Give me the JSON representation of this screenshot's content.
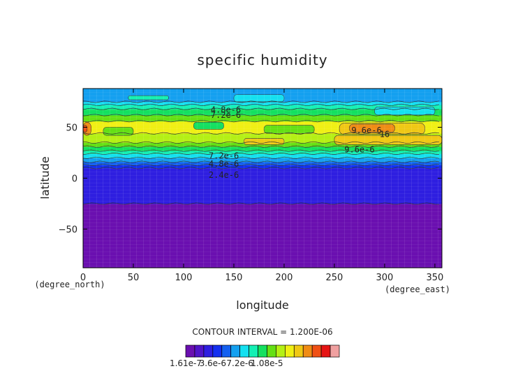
{
  "chart_data": {
    "type": "heatmap",
    "title": "specific humidity",
    "xlabel": "longitude",
    "ylabel": "latitude",
    "x_unit_label": "(degree_east)",
    "y_unit_label": "(degree_north)",
    "xlim": [
      0,
      357
    ],
    "ylim": [
      -88,
      88
    ],
    "x_ticks": [
      0,
      50,
      100,
      150,
      200,
      250,
      300,
      350
    ],
    "y_ticks": [
      -50,
      0,
      50
    ],
    "contour_interval_text": "CONTOUR INTERVAL = 1.200E-06",
    "color_levels": [
      "#6a0fb0",
      "#5014c8",
      "#2e1ee0",
      "#1430f0",
      "#1460f0",
      "#14a0f0",
      "#14e0f0",
      "#14f0b4",
      "#14e060",
      "#64e014",
      "#b4f014",
      "#f0f014",
      "#f0c814",
      "#f08c14",
      "#f05014",
      "#e61414",
      "#f0a0a0"
    ],
    "colorbar_labels": [
      "1.61e-7",
      "3.6e-6",
      "7.2e-6",
      "1.08e-5"
    ],
    "lat_profile": [
      {
        "lat": -88,
        "level": 0
      },
      {
        "lat": -26,
        "level": 0
      },
      {
        "lat": -25,
        "level": 2
      },
      {
        "lat": 9,
        "level": 2
      },
      {
        "lat": 10,
        "level": 3
      },
      {
        "lat": 13,
        "level": 4
      },
      {
        "lat": 16,
        "level": 5
      },
      {
        "lat": 20,
        "level": 6
      },
      {
        "lat": 24,
        "level": 7
      },
      {
        "lat": 27,
        "level": 8
      },
      {
        "lat": 31,
        "level": 9
      },
      {
        "lat": 35,
        "level": 10
      },
      {
        "lat": 44,
        "level": 11
      },
      {
        "lat": 56,
        "level": 9
      },
      {
        "lat": 62,
        "level": 8
      },
      {
        "lat": 68,
        "level": 7
      },
      {
        "lat": 72,
        "level": 6
      },
      {
        "lat": 75,
        "level": 5
      },
      {
        "lat": 88,
        "level": 5
      }
    ],
    "patches": [
      {
        "lon": [
          250,
          357
        ],
        "lat": [
          33,
          42
        ],
        "level": 12
      },
      {
        "lon": [
          160,
          200
        ],
        "lat": [
          33,
          39
        ],
        "level": 12
      },
      {
        "lon": [
          255,
          340
        ],
        "lat": [
          43,
          54
        ],
        "level": 12
      },
      {
        "lon": [
          265,
          310
        ],
        "lat": [
          45,
          53
        ],
        "level": 13
      },
      {
        "lon": [
          0,
          8
        ],
        "lat": [
          42,
          55
        ],
        "level": 13
      },
      {
        "lon": [
          0,
          4
        ],
        "lat": [
          45,
          52
        ],
        "level": 14
      },
      {
        "lon": [
          20,
          50
        ],
        "lat": [
          42,
          50
        ],
        "level": 9
      },
      {
        "lon": [
          180,
          230
        ],
        "lat": [
          44,
          52
        ],
        "level": 9
      },
      {
        "lon": [
          110,
          140
        ],
        "lat": [
          48,
          55
        ],
        "level": 8
      },
      {
        "lon": [
          45,
          85
        ],
        "lat": [
          77,
          81
        ],
        "level": 7
      },
      {
        "lon": [
          150,
          200
        ],
        "lat": [
          75,
          82
        ],
        "level": 6
      },
      {
        "lon": [
          290,
          350
        ],
        "lat": [
          62,
          70
        ],
        "level": 6
      }
    ],
    "contour_labels": [
      {
        "text": "4.8e-6",
        "lon": 142,
        "lat": 67
      },
      {
        "text": "7.2e-6",
        "lon": 142,
        "lat": 62
      },
      {
        "text": "9.6e-6",
        "lon": 282,
        "lat": 47
      },
      {
        "text": "16",
        "lon": 300,
        "lat": 43
      },
      {
        "text": "9.6e-6",
        "lon": 275,
        "lat": 28
      },
      {
        "text": "7.2e-6",
        "lon": 140,
        "lat": 22
      },
      {
        "text": "4.8e-6",
        "lon": 140,
        "lat": 14
      },
      {
        "text": "2.4e-6",
        "lon": 140,
        "lat": 3
      }
    ]
  }
}
